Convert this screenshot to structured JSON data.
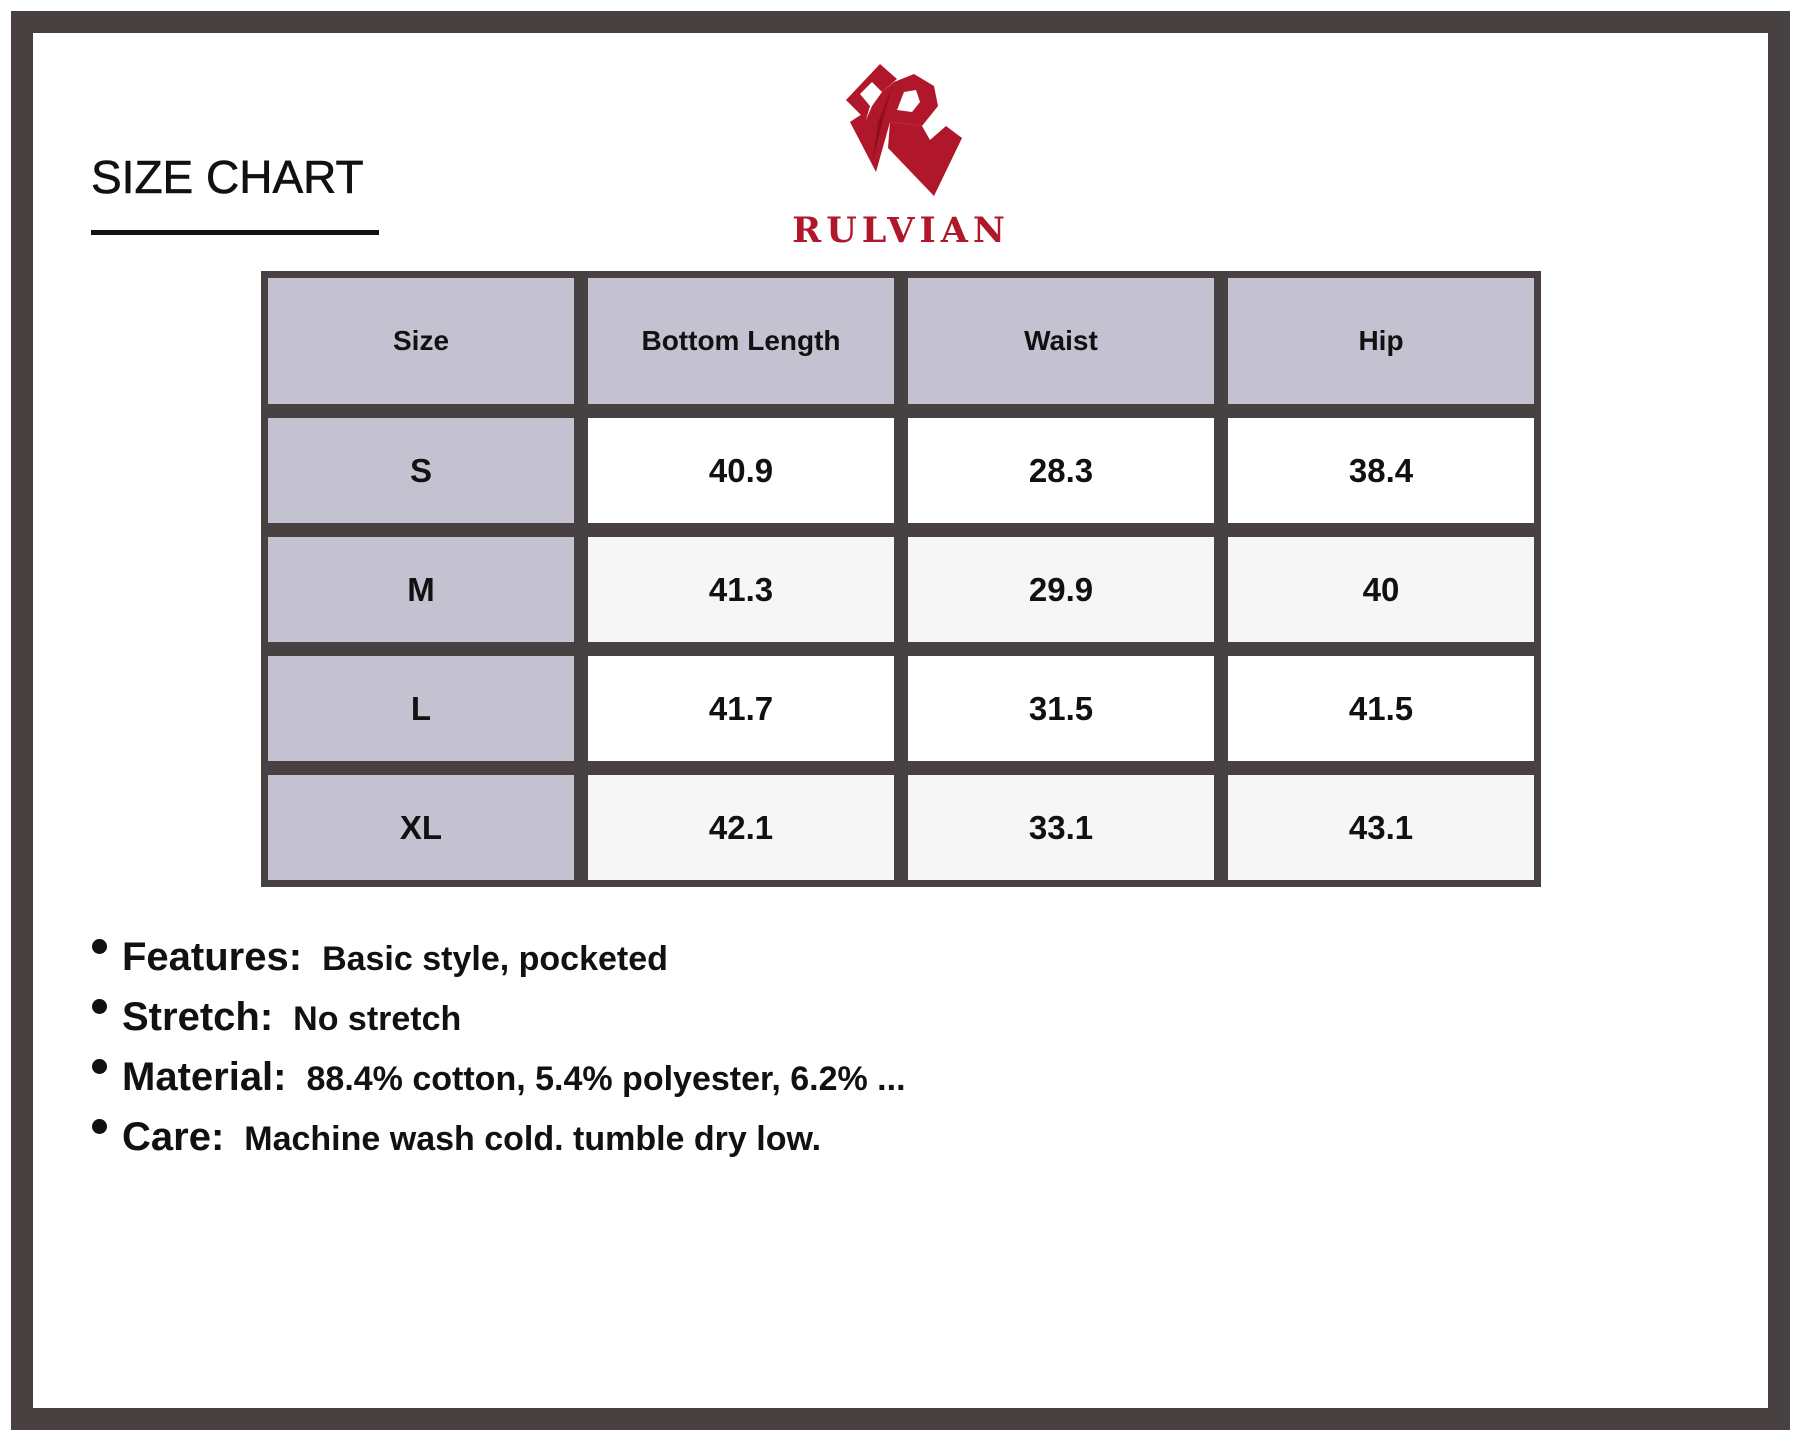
{
  "header": {
    "title": "SIZE CHART"
  },
  "brand": {
    "name": "RULVIAN",
    "color": "#b0172a",
    "logo_icon": "stylized-r-logo"
  },
  "table": {
    "columns": [
      "Size",
      "Bottom Length",
      "Waist",
      "Hip"
    ],
    "rows": [
      [
        "S",
        "40.9",
        "28.3",
        "38.4"
      ],
      [
        "M",
        "41.3",
        "29.9",
        "40"
      ],
      [
        "L",
        "41.7",
        "31.5",
        "41.5"
      ],
      [
        "XL",
        "42.1",
        "33.1",
        "43.1"
      ]
    ],
    "header_color": "#c4c2d0",
    "border_color": "#474141"
  },
  "specs": [
    {
      "label": "Features:",
      "value": "Basic style, pocketed"
    },
    {
      "label": "Stretch:",
      "value": "No stretch"
    },
    {
      "label": "Material:",
      "value": "88.4% cotton, 5.4% polyester, 6.2% ..."
    },
    {
      "label": "Care:",
      "value": "Machine wash cold. tumble dry low."
    }
  ]
}
